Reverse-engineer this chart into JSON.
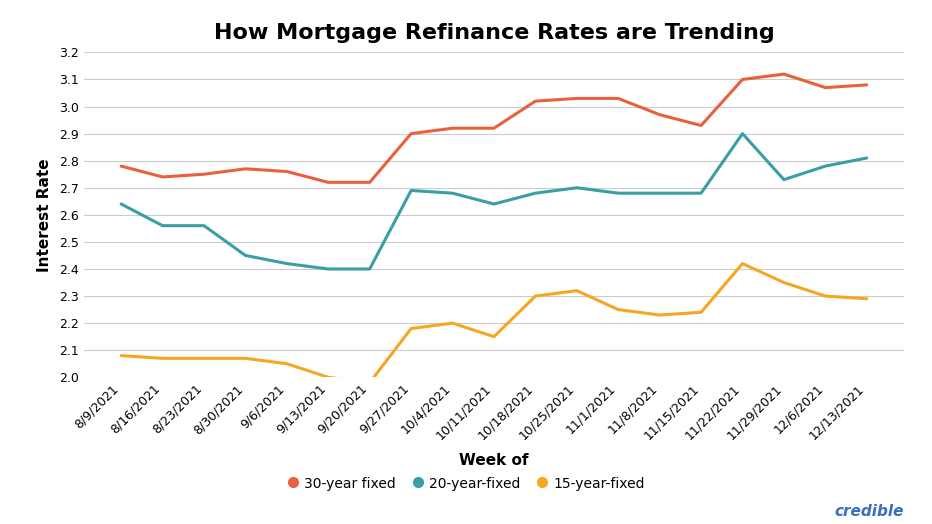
{
  "title": "How Mortgage Refinance Rates are Trending",
  "xlabel": "Week of",
  "ylabel": "Interest Rate",
  "x_labels": [
    "8/9/2021",
    "8/16/2021",
    "8/23/2021",
    "8/30/2021",
    "9/6/2021",
    "9/13/2021",
    "9/20/2021",
    "9/27/2021",
    "10/4/2021",
    "10/11/2021",
    "10/18/2021",
    "10/25/2021",
    "11/1/2021",
    "11/8/2021",
    "11/15/2021",
    "11/22/2021",
    "11/29/2021",
    "12/6/2021",
    "12/13/2021"
  ],
  "series": {
    "30-year fixed": {
      "color": "#E8613C",
      "values": [
        2.78,
        2.74,
        2.75,
        2.77,
        2.76,
        2.72,
        2.72,
        2.9,
        2.92,
        2.92,
        3.02,
        3.03,
        3.03,
        2.97,
        2.93,
        3.1,
        3.12,
        3.07,
        3.08
      ]
    },
    "20-year-fixed": {
      "color": "#3A9EA5",
      "values": [
        2.64,
        2.56,
        2.56,
        2.45,
        2.42,
        2.4,
        2.4,
        2.69,
        2.68,
        2.64,
        2.68,
        2.7,
        2.68,
        2.68,
        2.68,
        2.9,
        2.73,
        2.78,
        2.81
      ]
    },
    "15-year-fixed": {
      "color": "#F5A623",
      "values": [
        2.08,
        2.07,
        2.07,
        2.07,
        2.05,
        2.0,
        1.98,
        2.18,
        2.2,
        2.15,
        2.3,
        2.32,
        2.25,
        2.23,
        2.24,
        2.42,
        2.35,
        2.3,
        2.29
      ]
    }
  },
  "ylim": [
    2.0,
    3.2
  ],
  "yticks": [
    2.0,
    2.1,
    2.2,
    2.3,
    2.4,
    2.5,
    2.6,
    2.7,
    2.8,
    2.9,
    3.0,
    3.1,
    3.2
  ],
  "legend_entries": [
    "30-year fixed",
    "20-year-fixed",
    "15-year-fixed"
  ],
  "bg_color": "#FFFFFF",
  "grid_color": "#CCCCCC",
  "title_fontsize": 16,
  "axis_label_fontsize": 11,
  "tick_fontsize": 9,
  "legend_fontsize": 10,
  "credible_color": "#3A6FBF",
  "line_width": 2.2
}
